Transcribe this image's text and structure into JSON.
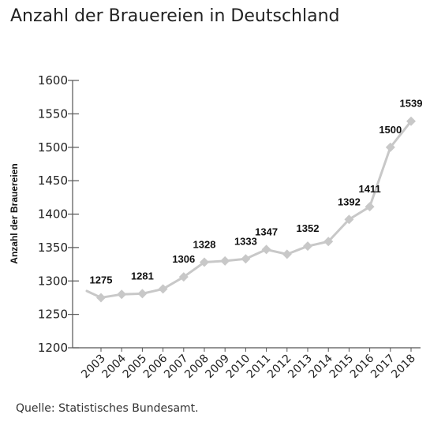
{
  "title": "Anzahl der Brauereien in Deutschland",
  "source": "Quelle: Statistisches Bundesamt.",
  "colors": {
    "line": "#c8c8c8",
    "marker": "#c8c8c8",
    "axis": "#555555",
    "text": "#222222"
  },
  "chart_data": {
    "type": "line",
    "ylabel": "Anzahl der Brauereien",
    "xlabel": "",
    "ylim": [
      1200,
      1600
    ],
    "yticks": [
      1200,
      1250,
      1300,
      1350,
      1400,
      1450,
      1500,
      1550,
      1600
    ],
    "grid": false,
    "start_value": 1285,
    "categories": [
      "2003",
      "2004",
      "2005",
      "2006",
      "2007",
      "2008",
      "2009",
      "2010",
      "2011",
      "2012",
      "2013",
      "2014",
      "2015",
      "2016",
      "2017",
      "2018"
    ],
    "values": [
      1275,
      1280,
      1281,
      1288,
      1306,
      1328,
      1330,
      1333,
      1347,
      1340,
      1352,
      1359,
      1392,
      1411,
      1500,
      1539
    ],
    "data_labels": [
      {
        "category": "2003",
        "text": "1275"
      },
      {
        "category": "2005",
        "text": "1281"
      },
      {
        "category": "2007",
        "text": "1306"
      },
      {
        "category": "2008",
        "text": "1328"
      },
      {
        "category": "2010",
        "text": "1333"
      },
      {
        "category": "2011",
        "text": "1347"
      },
      {
        "category": "2013",
        "text": "1352"
      },
      {
        "category": "2015",
        "text": "1392"
      },
      {
        "category": "2016",
        "text": "1411"
      },
      {
        "category": "2017",
        "text": "1500"
      },
      {
        "category": "2018",
        "text": "1539"
      }
    ]
  }
}
